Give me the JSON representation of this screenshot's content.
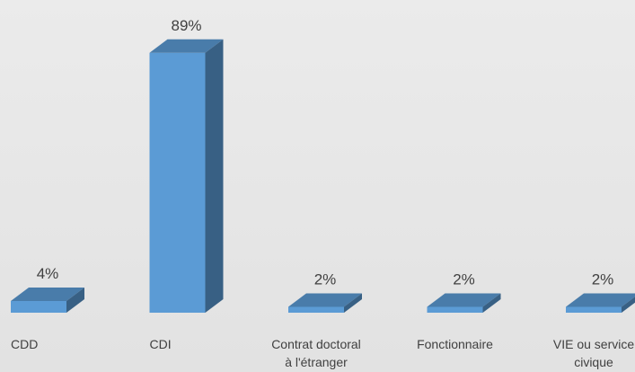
{
  "chart_data": {
    "type": "bar3d",
    "categories": [
      "CDD",
      "CDI",
      "Contrat doctoral à l'étranger",
      "Fonctionnaire",
      "VIE ou service civique"
    ],
    "values": [
      4,
      89,
      2,
      2,
      2
    ],
    "value_labels": [
      "4%",
      "89%",
      "2%",
      "2%",
      "2%"
    ],
    "color": "#5b9bd5",
    "ylim": [
      0,
      100
    ]
  }
}
